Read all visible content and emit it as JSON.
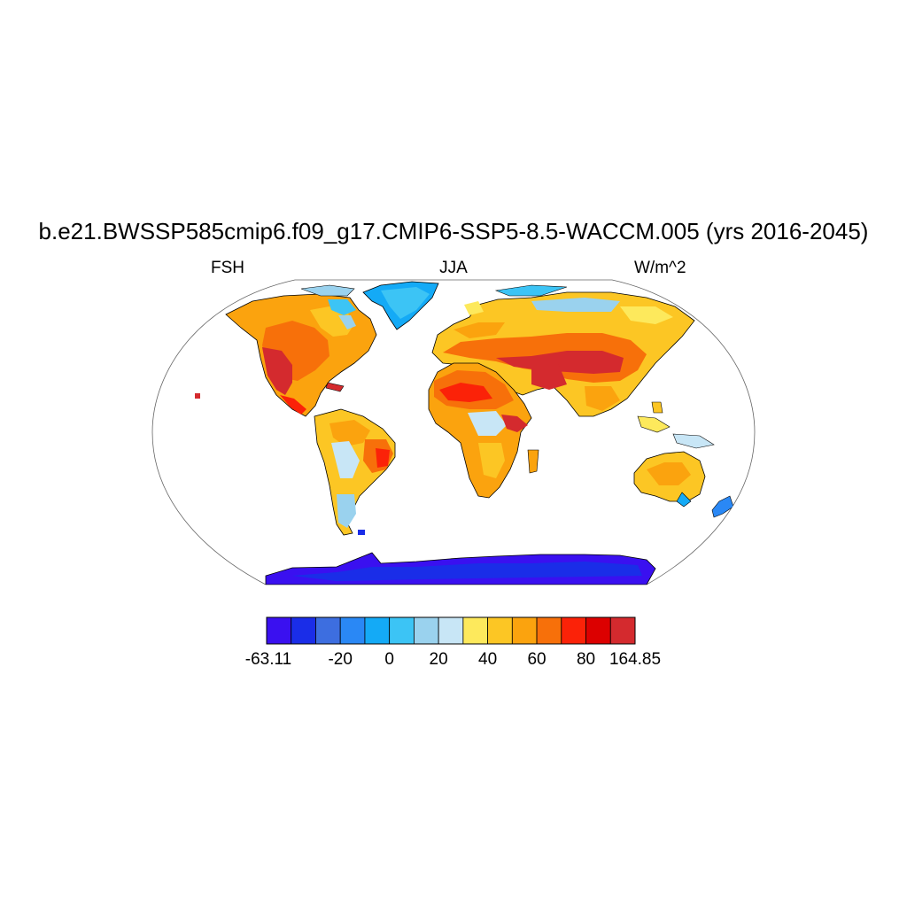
{
  "title": "b.e21.BWSSP585cmip6.f09_g17.CMIP6-SSP5-8.5-WACCM.005 (yrs 2016-2045)",
  "left_label": "FSH",
  "center_label": "JJA",
  "right_label": "W/m^2",
  "colorbar": {
    "colors": [
      "#3a10f0",
      "#1a2de8",
      "#3d6ee0",
      "#2a88f5",
      "#14aaf6",
      "#3cc4f5",
      "#9ad2ee",
      "#c8e6f6",
      "#fde95c",
      "#fcc624",
      "#fba30e",
      "#f7700a",
      "#fb2208",
      "#dc0000",
      "#d42a2e"
    ],
    "labels": [
      "-63.11",
      "-20",
      "0",
      "20",
      "40",
      "60",
      "80",
      "164.85"
    ]
  },
  "colors": {
    "ocean": "#ffffff",
    "outline": "#000000"
  }
}
